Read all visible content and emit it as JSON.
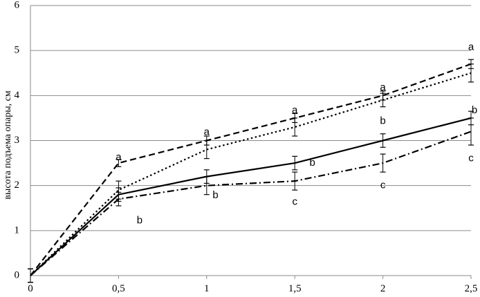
{
  "chart_data": {
    "type": "line",
    "title": "",
    "xlabel": "",
    "ylabel": "высота подъема опары, см",
    "x": [
      0,
      0.5,
      1,
      1.5,
      2,
      2.5
    ],
    "x_tick_labels": [
      "0",
      "0,5",
      "1",
      "1,5",
      "2",
      "2,5"
    ],
    "y_tick_labels": [
      "0",
      "1",
      "2",
      "3",
      "4",
      "5",
      "6"
    ],
    "xlim": [
      0,
      2.5
    ],
    "ylim": [
      0,
      6
    ],
    "grid": "horizontal",
    "legend": "none",
    "series": [
      {
        "style": "solid",
        "values": [
          0,
          1.8,
          2.2,
          2.5,
          3.0,
          3.5
        ],
        "errors": [
          0.15,
          0.15,
          0.15,
          0.15,
          0.15,
          0.15
        ]
      },
      {
        "style": "dashed",
        "values": [
          0,
          2.5,
          3.0,
          3.5,
          4.0,
          4.7
        ],
        "errors": [
          0.15,
          0.08,
          0.1,
          0.1,
          0.1,
          0.1
        ]
      },
      {
        "style": "dotted",
        "values": [
          0,
          1.9,
          2.8,
          3.3,
          3.9,
          4.5
        ],
        "errors": [
          0.15,
          0.2,
          0.2,
          0.2,
          0.15,
          0.2
        ]
      },
      {
        "style": "dashdot",
        "values": [
          0,
          1.7,
          2.0,
          2.1,
          2.5,
          3.2
        ],
        "errors": [
          0.15,
          0.15,
          0.2,
          0.2,
          0.2,
          0.3
        ]
      }
    ],
    "annotations": [
      {
        "text": "a",
        "x": 0.5,
        "y": 2.62
      },
      {
        "text": "b",
        "x": 0.62,
        "y": 1.22
      },
      {
        "text": "a",
        "x": 1.0,
        "y": 3.18
      },
      {
        "text": "b",
        "x": 1.05,
        "y": 1.78
      },
      {
        "text": "a",
        "x": 1.5,
        "y": 3.67
      },
      {
        "text": "b",
        "x": 1.6,
        "y": 2.5
      },
      {
        "text": "c",
        "x": 1.5,
        "y": 1.63
      },
      {
        "text": "a",
        "x": 2.0,
        "y": 4.17
      },
      {
        "text": "b",
        "x": 2.0,
        "y": 3.43
      },
      {
        "text": "c",
        "x": 2.0,
        "y": 2.0
      },
      {
        "text": "a",
        "x": 2.5,
        "y": 5.07
      },
      {
        "text": "b",
        "x": 2.52,
        "y": 3.67
      },
      {
        "text": "c",
        "x": 2.5,
        "y": 2.6
      }
    ]
  }
}
